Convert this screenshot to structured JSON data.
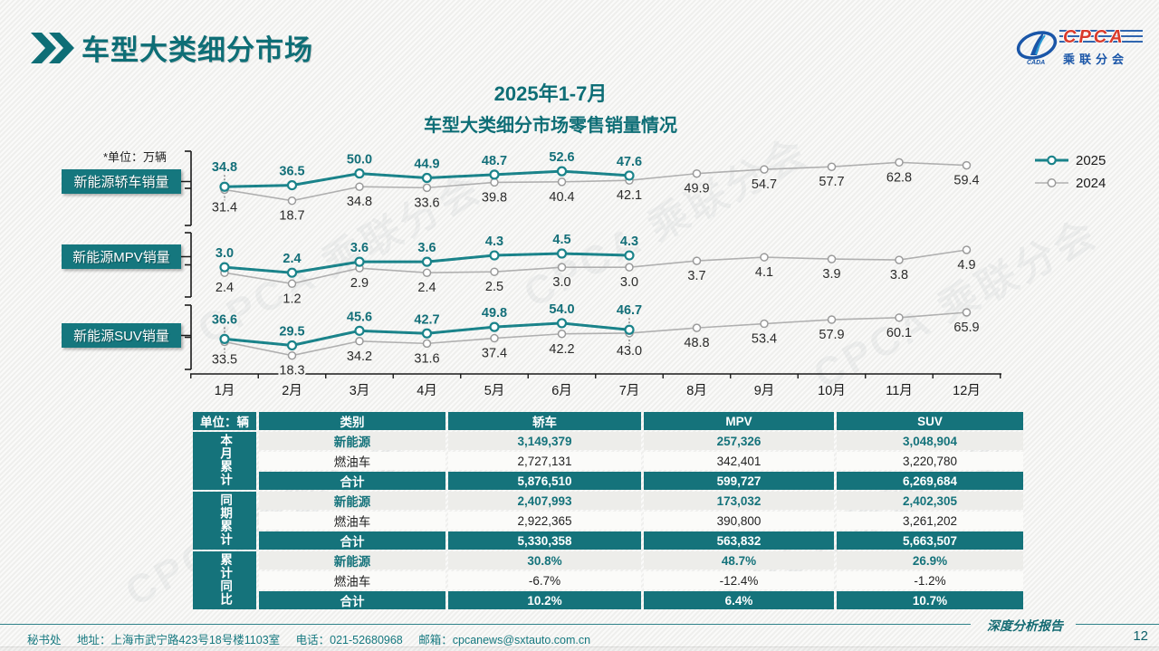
{
  "header": {
    "title": "车型大类细分市场",
    "logo": {
      "cpca": "CPCA",
      "sub": "乘联分会"
    }
  },
  "chart_title_line1": "2025年1-7月",
  "chart_title_line2": "车型大类细分市场零售销量情况",
  "unit_note": "*单位：万辆",
  "watermark": "CPCA 乘联分会",
  "colors": {
    "teal_line": "#1a838a",
    "teal_label": "#136f79",
    "teal_fill": "#15737b",
    "gray_line": "#b0b0b0",
    "gray_stroke": "#9a9a9a",
    "black_label": "#2b2b2b",
    "axis": "#1a1a1a",
    "logo_red": "#d93a2b",
    "logo_blue": "#1a56a8"
  },
  "legend": [
    {
      "label": "2025"
    },
    {
      "label": "2024"
    }
  ],
  "chart_data": [
    {
      "type": "line",
      "title": "新能源轿车销量",
      "ylabel": "万辆",
      "categories": [
        "1月",
        "2月",
        "3月",
        "4月",
        "5月",
        "6月",
        "7月",
        "8月",
        "9月",
        "10月",
        "11月",
        "12月"
      ],
      "series": [
        {
          "name": "2025",
          "values": [
            34.8,
            36.5,
            50.0,
            44.9,
            48.7,
            52.6,
            47.6
          ]
        },
        {
          "name": "2024",
          "values": [
            31.4,
            18.7,
            34.8,
            33.6,
            39.8,
            40.4,
            42.1,
            49.9,
            54.7,
            57.7,
            62.8,
            59.4
          ]
        }
      ]
    },
    {
      "type": "line",
      "title": "新能源MPV销量",
      "ylabel": "万辆",
      "categories": [
        "1月",
        "2月",
        "3月",
        "4月",
        "5月",
        "6月",
        "7月",
        "8月",
        "9月",
        "10月",
        "11月",
        "12月"
      ],
      "series": [
        {
          "name": "2025",
          "values": [
            3.0,
            2.4,
            3.6,
            3.6,
            4.3,
            4.5,
            4.3
          ]
        },
        {
          "name": "2024",
          "values": [
            2.4,
            1.2,
            2.9,
            2.4,
            2.5,
            3.0,
            3.0,
            3.7,
            4.1,
            3.9,
            3.8,
            4.9
          ]
        }
      ]
    },
    {
      "type": "line",
      "title": "新能源SUV销量",
      "ylabel": "万辆",
      "categories": [
        "1月",
        "2月",
        "3月",
        "4月",
        "5月",
        "6月",
        "7月",
        "8月",
        "9月",
        "10月",
        "11月",
        "12月"
      ],
      "series": [
        {
          "name": "2025",
          "values": [
            36.6,
            29.5,
            45.6,
            42.7,
            49.8,
            54.0,
            46.7
          ]
        },
        {
          "name": "2024",
          "values": [
            33.5,
            18.3,
            34.2,
            31.6,
            37.4,
            42.2,
            43.0,
            48.8,
            53.4,
            57.9,
            60.1,
            65.9
          ]
        }
      ]
    }
  ],
  "table": {
    "unit_header": "单位：辆",
    "col_headers": [
      "类别",
      "轿车",
      "MPV",
      "SUV"
    ],
    "groups": [
      {
        "label": "本月累计",
        "rows": [
          {
            "cat": "新能源",
            "style": "nev",
            "values": [
              "3,149,379",
              "257,326",
              "3,048,904"
            ]
          },
          {
            "cat": "燃油车",
            "style": "ice",
            "values": [
              "2,727,131",
              "342,401",
              "3,220,780"
            ]
          },
          {
            "cat": "合计",
            "style": "tot",
            "values": [
              "5,876,510",
              "599,727",
              "6,269,684"
            ]
          }
        ]
      },
      {
        "label": "同期累计",
        "rows": [
          {
            "cat": "新能源",
            "style": "nev",
            "values": [
              "2,407,993",
              "173,032",
              "2,402,305"
            ]
          },
          {
            "cat": "燃油车",
            "style": "ice",
            "values": [
              "2,922,365",
              "390,800",
              "3,261,202"
            ]
          },
          {
            "cat": "合计",
            "style": "tot",
            "values": [
              "5,330,358",
              "563,832",
              "5,663,507"
            ]
          }
        ]
      },
      {
        "label": "累计同比",
        "rows": [
          {
            "cat": "新能源",
            "style": "nev",
            "values": [
              "30.8%",
              "48.7%",
              "26.9%"
            ]
          },
          {
            "cat": "燃油车",
            "style": "ice",
            "values": [
              "-6.7%",
              "-12.4%",
              "-1.2%"
            ]
          },
          {
            "cat": "合计",
            "style": "tot",
            "values": [
              "10.2%",
              "6.4%",
              "10.7%"
            ]
          }
        ]
      }
    ]
  },
  "footer": {
    "secretariat": "秘书处",
    "address": "地址：上海市武宁路423号18号楼1103室",
    "phone": "电话：021-52680968",
    "email": "邮箱：cpcanews@sxtauto.com.cn",
    "report_label": "深度分析报告",
    "page": "12"
  }
}
